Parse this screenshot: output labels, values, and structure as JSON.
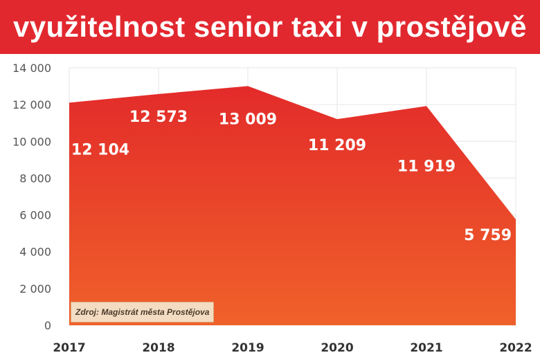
{
  "title": "využitelnost senior taxi v prostějově",
  "source": "Zdroj: Magistrát města Prostějova",
  "colors": {
    "title_bg": "#e2282f",
    "area_top": "#e32b2a",
    "area_bottom": "#f0612a",
    "gridline": "#e6e6e6",
    "label_text": "#ffffff"
  },
  "chart_data": {
    "type": "area",
    "title": "využitelnost senior taxi v prostějově",
    "xlabel": "",
    "ylabel": "",
    "x": [
      "2017",
      "2018",
      "2019",
      "2020",
      "2021",
      "2022"
    ],
    "values": [
      12104,
      12573,
      13009,
      11209,
      11919,
      5759
    ],
    "value_labels": [
      "12 104",
      "12 573",
      "13 009",
      "11 209",
      "11 919",
      "5 759"
    ],
    "ylim": [
      0,
      14000
    ],
    "yticks": [
      0,
      2000,
      4000,
      6000,
      8000,
      10000,
      12000,
      14000
    ],
    "ytick_labels": [
      "0",
      "2 000",
      "4 000",
      "6 000",
      "8 000",
      "10 000",
      "12 000",
      "14 000"
    ],
    "grid": true,
    "legend": "none"
  }
}
